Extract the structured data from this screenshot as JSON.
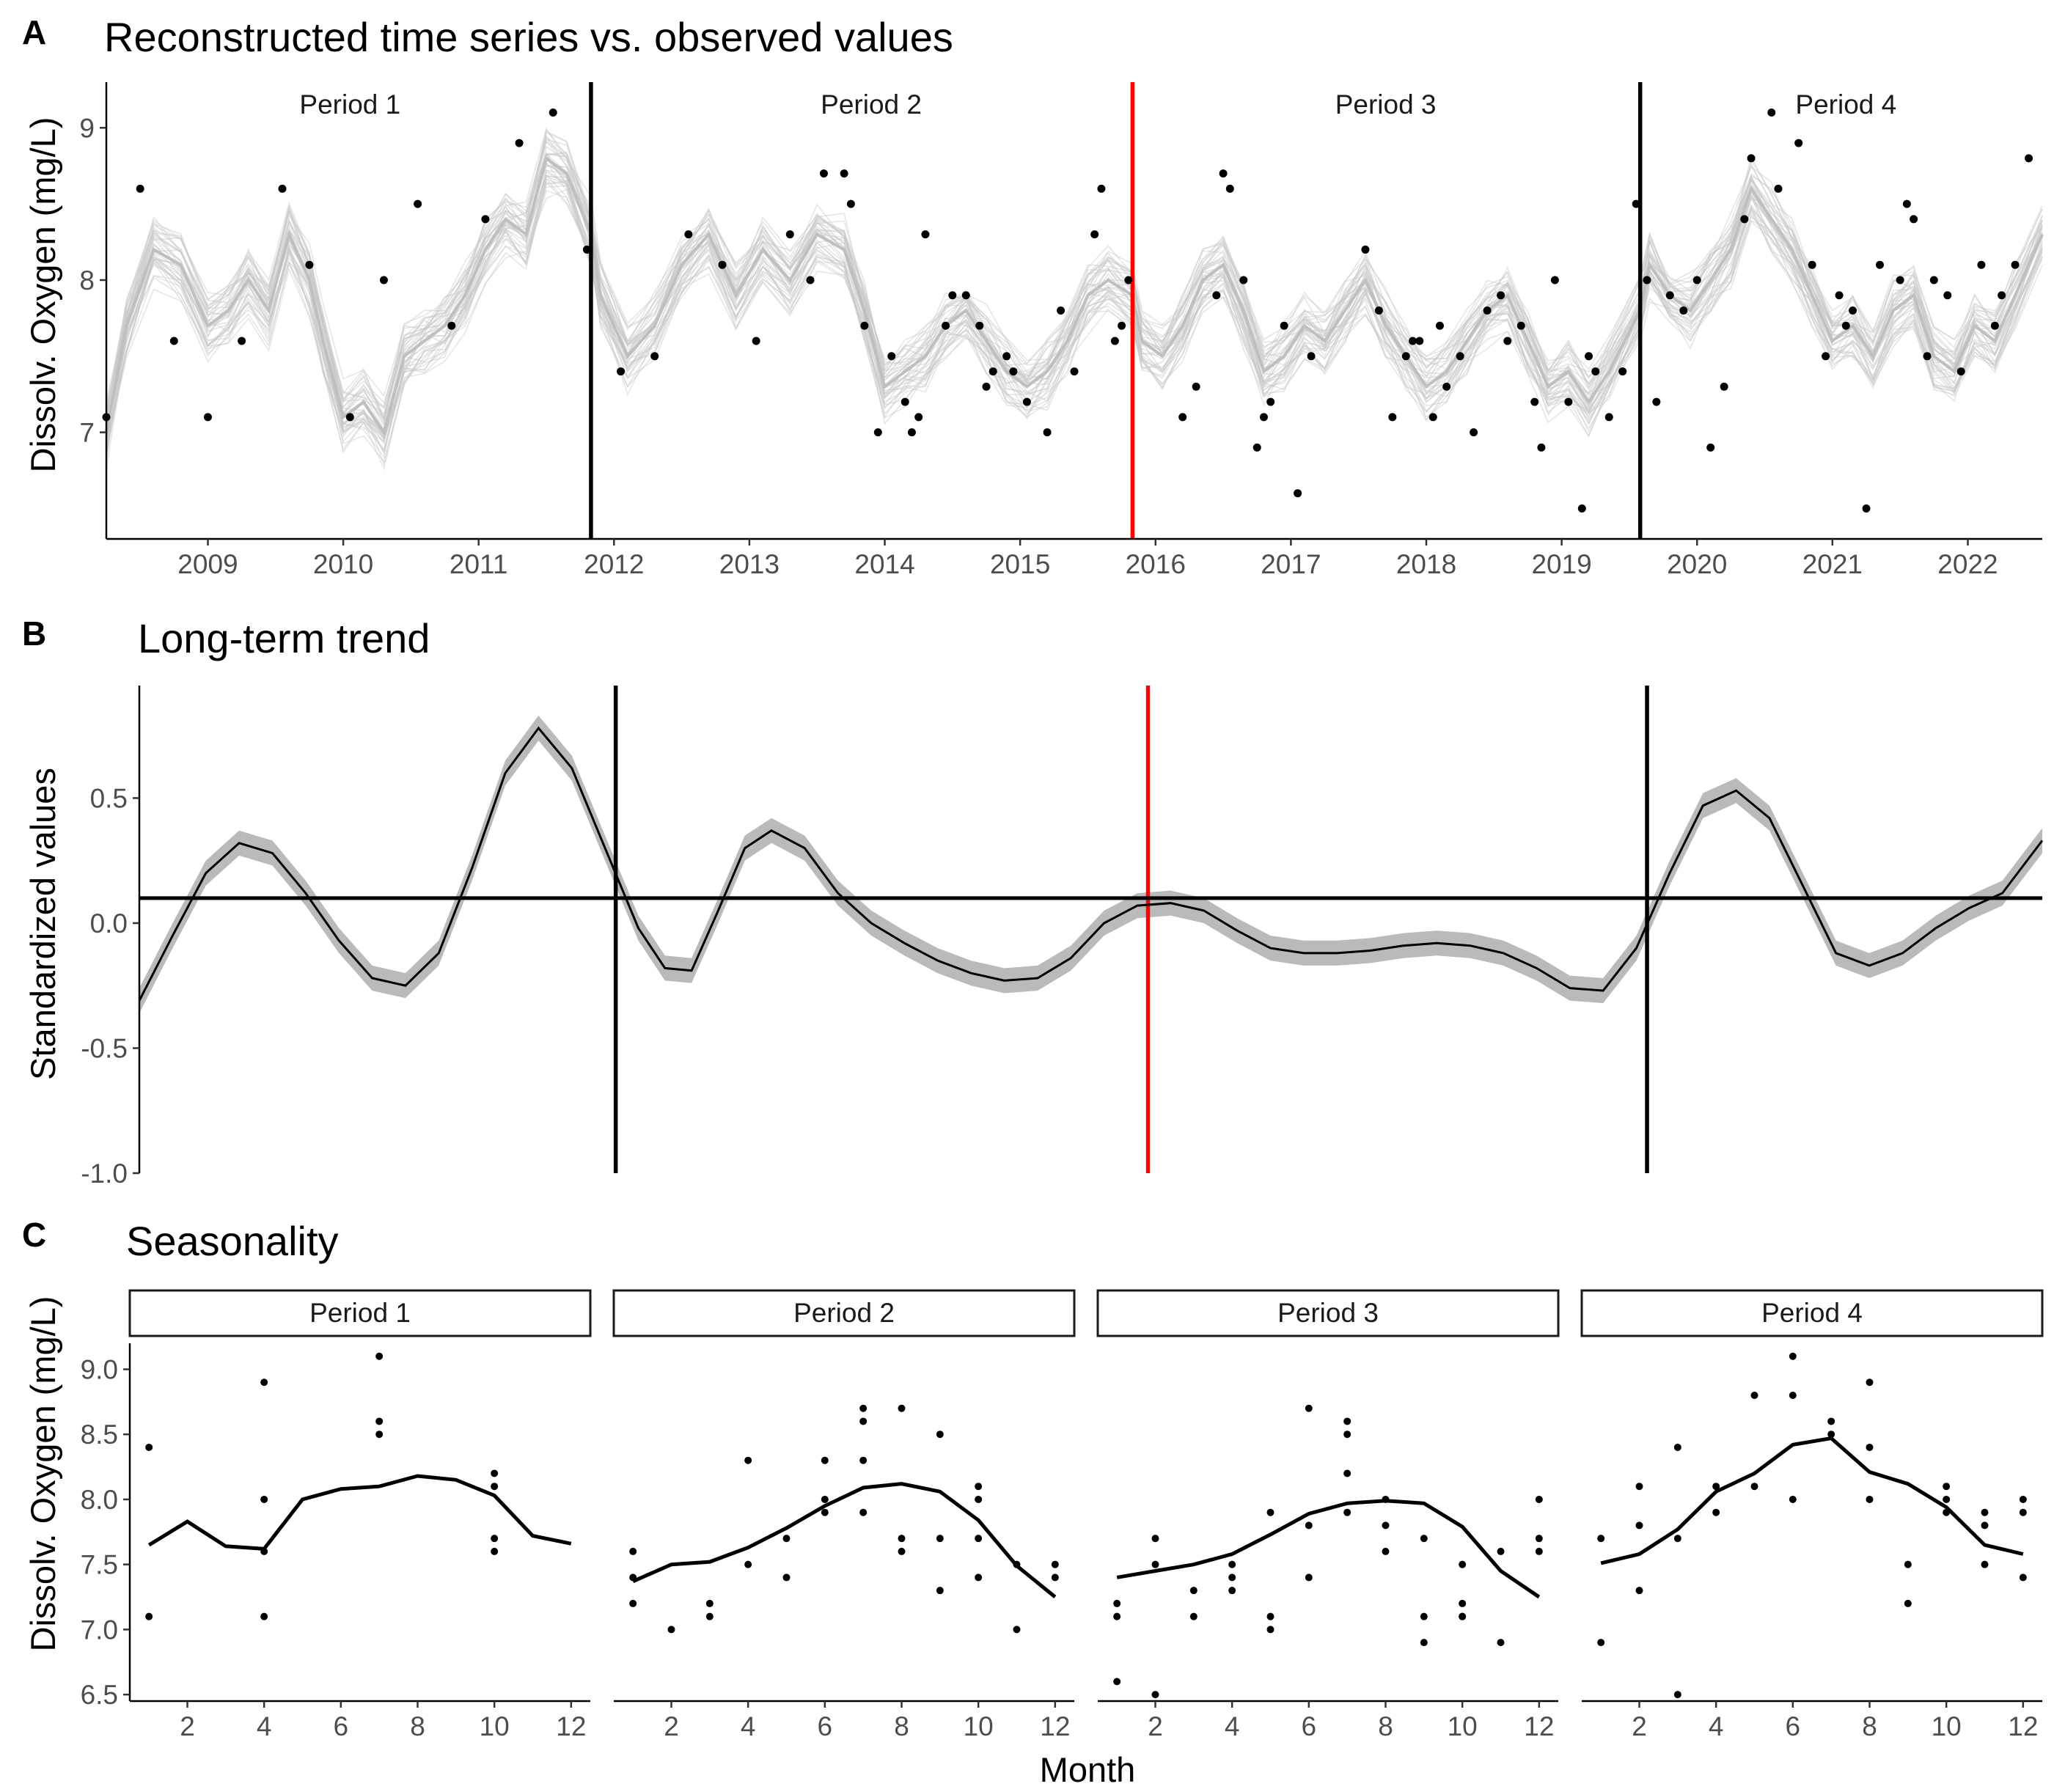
{
  "colors": {
    "observed": "#000000",
    "ensemble": "#c8c8c8",
    "ribbon": "#b3b3b3",
    "breakpoint": "#000000",
    "breakpoint_highlight": "#ff0000",
    "text": "#000000",
    "tick_text": "#4d4d4d"
  },
  "chart_data": [
    {
      "panel": "A",
      "type": "scatter",
      "title": "Reconstructed time series vs. observed values",
      "xlabel": "",
      "ylabel": "Dissolv. Oxygen (mg/L)",
      "xlim": [
        2008.25,
        2022.55
      ],
      "ylim": [
        6.3,
        9.3
      ],
      "xticks": [
        2009,
        2010,
        2011,
        2012,
        2013,
        2014,
        2015,
        2016,
        2017,
        2018,
        2019,
        2020,
        2021,
        2022
      ],
      "xtick_labels": [
        "2009",
        "2010",
        "2011",
        "2012",
        "2013",
        "2014",
        "2015",
        "2016",
        "2017",
        "2018",
        "2019",
        "2020",
        "2021",
        "2022"
      ],
      "yticks": [
        7,
        8,
        9
      ],
      "ytick_labels": [
        "7",
        "8",
        "9"
      ],
      "breakpoints": [
        {
          "x": 2011.83,
          "highlight": false
        },
        {
          "x": 2015.83,
          "highlight": true
        },
        {
          "x": 2019.58,
          "highlight": false
        }
      ],
      "period_labels": [
        {
          "label": "Period 1",
          "x": 2010.05
        },
        {
          "label": "Period 2",
          "x": 2013.9
        },
        {
          "label": "Period 3",
          "x": 2017.7
        },
        {
          "label": "Period 4",
          "x": 2021.1
        }
      ],
      "observed": {
        "x": [
          2008.25,
          2008.5,
          2008.75,
          2009.0,
          2009.25,
          2009.55,
          2009.75,
          2010.05,
          2010.3,
          2010.55,
          2010.8,
          2011.05,
          2011.3,
          2011.55,
          2011.8,
          2012.05,
          2012.3,
          2012.55,
          2012.8,
          2013.05,
          2013.3,
          2013.45,
          2013.55,
          2013.7,
          2013.75,
          2013.85,
          2013.95,
          2014.05,
          2014.15,
          2014.2,
          2014.25,
          2014.3,
          2014.45,
          2014.5,
          2014.6,
          2014.7,
          2014.75,
          2014.8,
          2014.9,
          2014.95,
          2015.05,
          2015.2,
          2015.3,
          2015.4,
          2015.55,
          2015.6,
          2015.7,
          2015.75,
          2015.8,
          2016.2,
          2016.3,
          2016.45,
          2016.5,
          2016.55,
          2016.65,
          2016.75,
          2016.8,
          2016.85,
          2016.95,
          2017.05,
          2017.15,
          2017.55,
          2017.65,
          2017.75,
          2017.85,
          2017.9,
          2017.95,
          2018.05,
          2018.1,
          2018.15,
          2018.25,
          2018.35,
          2018.45,
          2018.55,
          2018.6,
          2018.7,
          2018.8,
          2018.85,
          2018.95,
          2019.05,
          2019.15,
          2019.2,
          2019.25,
          2019.35,
          2019.45,
          2019.55,
          2019.63,
          2019.7,
          2019.8,
          2019.9,
          2020.0,
          2020.1,
          2020.2,
          2020.35,
          2020.4,
          2020.55,
          2020.6,
          2020.75,
          2020.85,
          2020.95,
          2021.05,
          2021.1,
          2021.15,
          2021.25,
          2021.35,
          2021.5,
          2021.55,
          2021.6,
          2021.7,
          2021.75,
          2021.85,
          2021.95,
          2022.1,
          2022.2,
          2022.25,
          2022.35,
          2022.45
        ],
        "y": [
          7.1,
          8.6,
          7.6,
          7.1,
          7.6,
          8.6,
          8.1,
          7.1,
          8.0,
          8.5,
          7.7,
          8.4,
          8.9,
          9.1,
          8.2,
          7.4,
          7.5,
          8.3,
          8.1,
          7.6,
          8.3,
          8.0,
          8.7,
          8.7,
          8.5,
          7.7,
          7.0,
          7.5,
          7.2,
          7.0,
          7.1,
          8.3,
          7.7,
          7.9,
          7.9,
          7.7,
          7.3,
          7.4,
          7.5,
          7.4,
          7.2,
          7.0,
          7.8,
          7.4,
          8.3,
          8.6,
          7.6,
          7.7,
          8.0,
          7.1,
          7.3,
          7.9,
          8.7,
          8.6,
          8.0,
          6.9,
          7.1,
          7.2,
          7.7,
          6.6,
          7.5,
          8.2,
          7.8,
          7.1,
          7.5,
          7.6,
          7.6,
          7.1,
          7.7,
          7.3,
          7.5,
          7.0,
          7.8,
          7.9,
          7.6,
          7.7,
          7.2,
          6.9,
          8.0,
          7.2,
          6.5,
          7.5,
          7.4,
          7.1,
          7.4,
          8.5,
          8.0,
          7.2,
          7.9,
          7.8,
          8.0,
          6.9,
          7.3,
          8.4,
          8.8,
          9.1,
          8.6,
          8.9,
          8.1,
          7.5,
          7.9,
          7.7,
          7.8,
          6.5,
          8.1,
          8.0,
          8.5,
          8.4,
          7.5,
          8.0,
          7.9,
          7.4,
          8.1,
          7.7,
          7.9,
          8.1,
          8.8
        ]
      },
      "ensemble_mean": {
        "x": [
          2008.25,
          2008.4,
          2008.6,
          2008.8,
          2009.0,
          2009.15,
          2009.3,
          2009.45,
          2009.6,
          2009.75,
          2009.85,
          2010.0,
          2010.15,
          2010.3,
          2010.45,
          2010.6,
          2010.75,
          2010.9,
          2011.05,
          2011.2,
          2011.35,
          2011.5,
          2011.65,
          2011.83,
          2011.9,
          2012.1,
          2012.3,
          2012.5,
          2012.7,
          2012.9,
          2013.1,
          2013.3,
          2013.5,
          2013.7,
          2013.85,
          2014.0,
          2014.15,
          2014.3,
          2014.45,
          2014.6,
          2014.75,
          2014.9,
          2015.05,
          2015.2,
          2015.35,
          2015.5,
          2015.65,
          2015.83,
          2015.9,
          2016.05,
          2016.2,
          2016.35,
          2016.5,
          2016.65,
          2016.8,
          2016.95,
          2017.1,
          2017.25,
          2017.4,
          2017.55,
          2017.7,
          2017.85,
          2018.0,
          2018.15,
          2018.3,
          2018.45,
          2018.6,
          2018.75,
          2018.9,
          2019.05,
          2019.2,
          2019.35,
          2019.58,
          2019.65,
          2019.8,
          2019.95,
          2020.1,
          2020.25,
          2020.4,
          2020.55,
          2020.7,
          2020.85,
          2021.0,
          2021.15,
          2021.3,
          2021.45,
          2021.6,
          2021.75,
          2021.9,
          2022.05,
          2022.2,
          2022.35,
          2022.55
        ],
        "y": [
          7.0,
          7.7,
          8.2,
          8.1,
          7.7,
          7.8,
          8.0,
          7.8,
          8.3,
          8.0,
          7.6,
          7.1,
          7.2,
          7.0,
          7.5,
          7.6,
          7.7,
          7.9,
          8.2,
          8.4,
          8.3,
          8.8,
          8.7,
          8.3,
          7.9,
          7.5,
          7.7,
          8.1,
          8.3,
          7.9,
          8.2,
          8.0,
          8.3,
          8.2,
          7.8,
          7.3,
          7.4,
          7.5,
          7.7,
          7.8,
          7.6,
          7.4,
          7.3,
          7.4,
          7.6,
          7.9,
          8.0,
          7.9,
          7.6,
          7.5,
          7.7,
          8.0,
          8.1,
          7.8,
          7.4,
          7.5,
          7.7,
          7.6,
          7.8,
          8.0,
          7.7,
          7.5,
          7.3,
          7.4,
          7.6,
          7.8,
          7.9,
          7.6,
          7.3,
          7.4,
          7.2,
          7.4,
          7.8,
          8.1,
          7.9,
          7.8,
          8.0,
          8.2,
          8.6,
          8.4,
          8.2,
          7.9,
          7.6,
          7.7,
          7.5,
          7.8,
          7.9,
          7.5,
          7.4,
          7.7,
          7.6,
          7.9,
          8.3
        ]
      }
    },
    {
      "panel": "B",
      "type": "line",
      "title": "Long-term trend",
      "xlabel": "",
      "ylabel": "Standardized values",
      "xlim": [
        2008.25,
        2022.55
      ],
      "ylim": [
        -1.0,
        0.95
      ],
      "yticks": [
        -1.0,
        -0.5,
        0.0,
        0.5
      ],
      "ytick_labels": [
        "-1.0",
        "-0.5",
        "0.0",
        "0.5"
      ],
      "reference_line": 0.1,
      "ribbon_halfwidth": 0.05,
      "breakpoints": [
        {
          "x": 2011.83,
          "highlight": false
        },
        {
          "x": 2015.83,
          "highlight": true
        },
        {
          "x": 2019.58,
          "highlight": false
        }
      ],
      "series": [
        {
          "name": "trend",
          "x": [
            2008.25,
            2008.5,
            2008.75,
            2009.0,
            2009.25,
            2009.5,
            2009.75,
            2010.0,
            2010.25,
            2010.5,
            2010.75,
            2011.0,
            2011.25,
            2011.5,
            2011.75,
            2012.0,
            2012.2,
            2012.4,
            2012.6,
            2012.8,
            2013.0,
            2013.25,
            2013.5,
            2013.75,
            2014.0,
            2014.25,
            2014.5,
            2014.75,
            2015.0,
            2015.25,
            2015.5,
            2015.75,
            2016.0,
            2016.25,
            2016.5,
            2016.75,
            2017.0,
            2017.25,
            2017.5,
            2017.75,
            2018.0,
            2018.25,
            2018.5,
            2018.75,
            2019.0,
            2019.25,
            2019.5,
            2019.75,
            2020.0,
            2020.25,
            2020.5,
            2020.75,
            2021.0,
            2021.25,
            2021.5,
            2021.75,
            2022.0,
            2022.25,
            2022.55
          ],
          "y": [
            -0.31,
            -0.05,
            0.2,
            0.32,
            0.28,
            0.12,
            -0.07,
            -0.22,
            -0.25,
            -0.12,
            0.22,
            0.6,
            0.78,
            0.62,
            0.3,
            -0.02,
            -0.18,
            -0.19,
            0.05,
            0.3,
            0.37,
            0.3,
            0.12,
            0.0,
            -0.08,
            -0.15,
            -0.2,
            -0.23,
            -0.22,
            -0.14,
            0.0,
            0.07,
            0.08,
            0.05,
            -0.03,
            -0.1,
            -0.12,
            -0.12,
            -0.11,
            -0.09,
            -0.08,
            -0.09,
            -0.12,
            -0.18,
            -0.26,
            -0.27,
            -0.1,
            0.2,
            0.47,
            0.53,
            0.42,
            0.15,
            -0.12,
            -0.17,
            -0.12,
            -0.02,
            0.06,
            0.12,
            0.33
          ]
        }
      ]
    },
    {
      "panel": "C",
      "type": "line",
      "title": "Seasonality",
      "xlabel": "Month",
      "ylabel": "Dissolv. Oxygen (mg/L)",
      "xlim": [
        0.5,
        12.5
      ],
      "ylim": [
        6.45,
        9.2
      ],
      "xticks": [
        2,
        4,
        6,
        8,
        10,
        12
      ],
      "xtick_labels": [
        "2",
        "4",
        "6",
        "8",
        "10",
        "12"
      ],
      "yticks": [
        6.5,
        7.0,
        7.5,
        8.0,
        8.5,
        9.0
      ],
      "ytick_labels": [
        "6.5",
        "7.0",
        "7.5",
        "8.0",
        "8.5",
        "9.0"
      ],
      "facets": [
        {
          "label": "Period 1",
          "months": [
            1,
            2,
            3,
            4,
            5,
            6,
            7,
            8,
            9,
            10,
            11,
            12
          ],
          "mean": [
            7.65,
            7.83,
            7.64,
            7.62,
            8.0,
            8.08,
            8.1,
            8.18,
            8.15,
            8.03,
            7.72,
            7.66
          ],
          "points_x": [
            1,
            1,
            4,
            4,
            4,
            4,
            7,
            7,
            7,
            10,
            10,
            10,
            10
          ],
          "points_y": [
            8.4,
            7.1,
            8.9,
            8.0,
            7.6,
            7.1,
            9.1,
            8.6,
            8.5,
            8.2,
            8.1,
            7.7,
            7.6
          ]
        },
        {
          "label": "Period 2",
          "months": [
            1,
            2,
            3,
            4,
            5,
            6,
            7,
            8,
            9,
            10,
            11,
            12
          ],
          "mean": [
            7.37,
            7.5,
            7.52,
            7.63,
            7.78,
            7.95,
            8.09,
            8.12,
            8.06,
            7.84,
            7.49,
            7.25
          ],
          "points_x": [
            1,
            1,
            1,
            2,
            3,
            3,
            4,
            4,
            5,
            5,
            6,
            6,
            6,
            7,
            7,
            7,
            7,
            8,
            8,
            8,
            9,
            9,
            9,
            10,
            10,
            10,
            10,
            11,
            11,
            12,
            12
          ],
          "points_y": [
            7.6,
            7.4,
            7.2,
            7.0,
            7.2,
            7.1,
            8.3,
            7.5,
            7.7,
            7.4,
            8.3,
            8.0,
            7.9,
            8.7,
            8.6,
            8.3,
            7.9,
            8.7,
            7.7,
            7.6,
            8.5,
            7.7,
            7.3,
            8.1,
            8.0,
            7.7,
            7.4,
            7.5,
            7.0,
            7.5,
            7.4
          ]
        },
        {
          "label": "Period 3",
          "months": [
            1,
            2,
            3,
            4,
            5,
            6,
            7,
            8,
            9,
            10,
            11,
            12
          ],
          "mean": [
            7.4,
            7.45,
            7.5,
            7.58,
            7.73,
            7.89,
            7.97,
            7.99,
            7.97,
            7.79,
            7.45,
            7.25
          ],
          "points_x": [
            1,
            1,
            1,
            2,
            2,
            2,
            3,
            3,
            4,
            4,
            4,
            5,
            5,
            5,
            6,
            6,
            6,
            7,
            7,
            7,
            7,
            8,
            8,
            8,
            9,
            9,
            9,
            10,
            10,
            10,
            10,
            11,
            11,
            12,
            12,
            12
          ],
          "points_y": [
            7.2,
            7.1,
            6.6,
            7.7,
            7.5,
            6.5,
            7.3,
            7.1,
            7.5,
            7.4,
            7.3,
            7.9,
            7.1,
            7.0,
            8.7,
            7.8,
            7.4,
            8.6,
            8.5,
            8.2,
            7.9,
            8.0,
            7.8,
            7.6,
            7.7,
            7.1,
            6.9,
            7.5,
            7.2,
            7.1,
            7.1,
            7.6,
            6.9,
            8.0,
            7.7,
            7.6
          ]
        },
        {
          "label": "Period 4",
          "months": [
            1,
            2,
            3,
            4,
            5,
            6,
            7,
            8,
            9,
            10,
            11,
            12
          ],
          "mean": [
            7.51,
            7.58,
            7.77,
            8.06,
            8.2,
            8.42,
            8.47,
            8.21,
            8.12,
            7.94,
            7.65,
            7.58
          ],
          "points_x": [
            1,
            1,
            2,
            2,
            2,
            3,
            3,
            3,
            4,
            4,
            5,
            5,
            6,
            6,
            6,
            7,
            7,
            8,
            8,
            8,
            9,
            9,
            10,
            10,
            10,
            11,
            11,
            11,
            12,
            12,
            12
          ],
          "points_y": [
            7.7,
            6.9,
            8.1,
            7.8,
            7.3,
            8.4,
            7.7,
            6.5,
            8.1,
            7.9,
            8.8,
            8.1,
            9.1,
            8.8,
            8.0,
            8.6,
            8.5,
            8.9,
            8.4,
            8.0,
            7.5,
            7.2,
            8.1,
            8.0,
            7.9,
            7.9,
            7.8,
            7.5,
            8.0,
            7.9,
            7.4
          ]
        }
      ]
    }
  ]
}
